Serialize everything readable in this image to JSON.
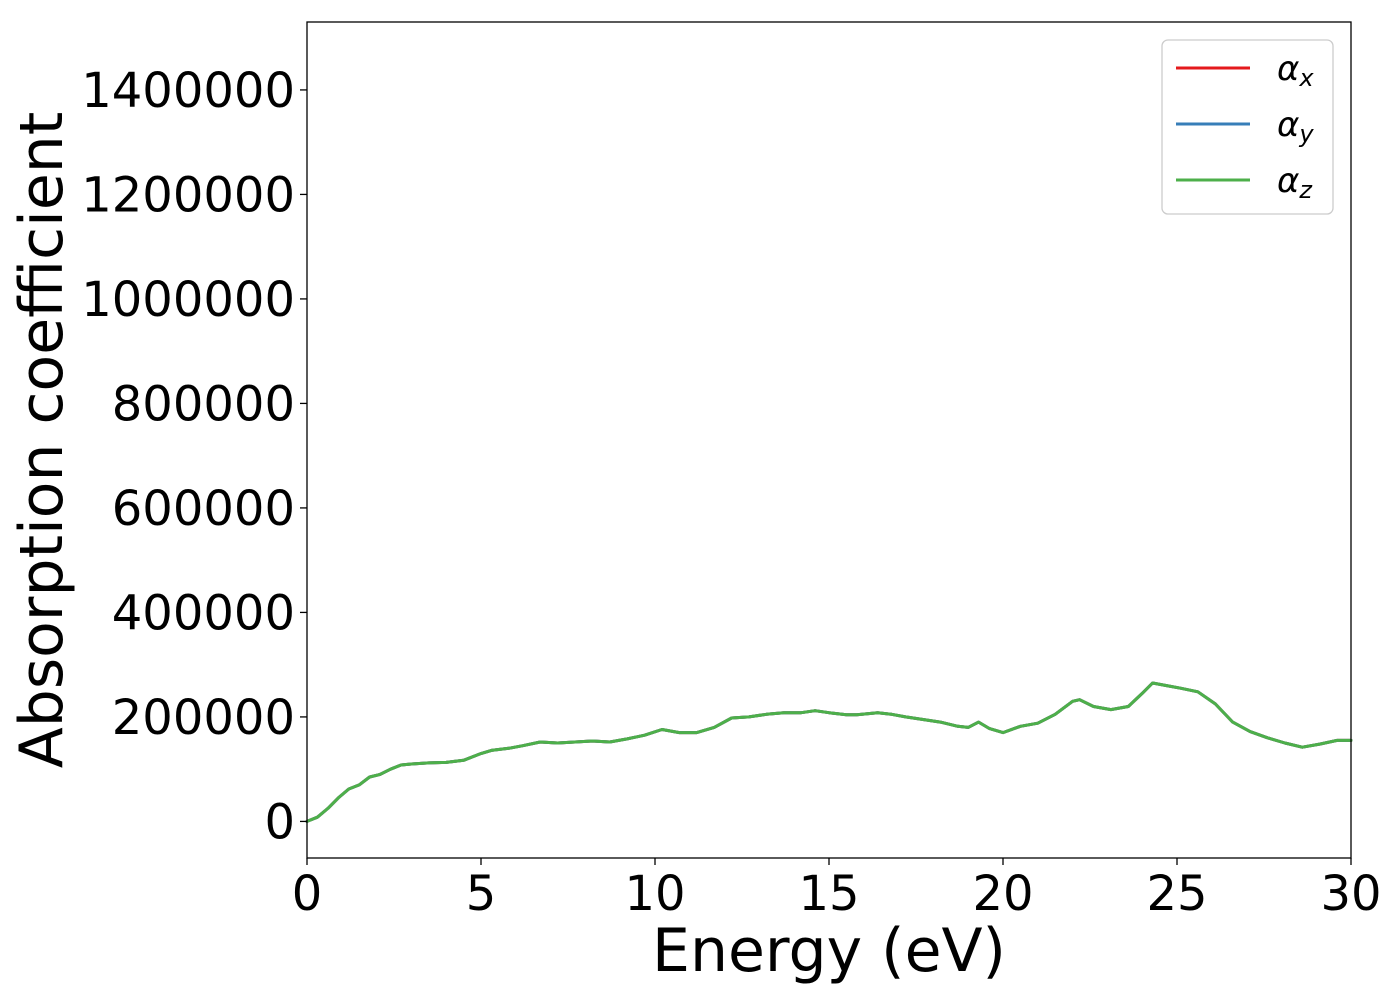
{
  "chart_data": {
    "type": "line",
    "title": "",
    "xlabel": "Energy (eV)",
    "ylabel": "Absorption coefficient",
    "xlim": [
      0,
      30
    ],
    "ylim": [
      -70000,
      1530000
    ],
    "xticks": [
      0,
      5,
      10,
      15,
      20,
      25,
      30
    ],
    "xtick_labels": [
      "0",
      "5",
      "10",
      "15",
      "20",
      "25",
      "30"
    ],
    "yticks": [
      0,
      200000,
      400000,
      600000,
      800000,
      1000000,
      1200000,
      1400000
    ],
    "ytick_labels": [
      "0",
      "200000",
      "400000",
      "600000",
      "800000",
      "1000000",
      "1200000",
      "1400000"
    ],
    "grid": false,
    "legend_position": "top-right",
    "x": [
      0,
      0.3,
      0.6,
      0.9,
      1.2,
      1.5,
      1.8,
      2.1,
      2.4,
      2.7,
      3.0,
      3.5,
      4.0,
      4.5,
      5.0,
      5.3,
      5.8,
      6.2,
      6.7,
      7.2,
      7.7,
      8.2,
      8.7,
      9.2,
      9.7,
      10.2,
      10.7,
      11.2,
      11.7,
      12.2,
      12.7,
      13.2,
      13.7,
      14.2,
      14.6,
      15.0,
      15.5,
      15.8,
      16.1,
      16.4,
      16.8,
      17.2,
      17.7,
      18.2,
      18.7,
      19.0,
      19.3,
      19.6,
      20.0,
      20.5,
      21.0,
      21.5,
      22.0,
      22.2,
      22.6,
      23.1,
      23.6,
      24.0,
      24.3,
      24.7,
      25.1,
      25.6,
      26.1,
      26.6,
      27.1,
      27.6,
      28.1,
      28.6,
      29.1,
      29.6,
      30.0
    ],
    "series": [
      {
        "name": "αx",
        "label_base": "α",
        "label_sub": "x",
        "color": "#e41a1c",
        "y": [
          0,
          8000,
          25000,
          45000,
          62000,
          70000,
          85000,
          90000,
          100000,
          108000,
          110000,
          112000,
          113000,
          117000,
          130000,
          136000,
          140000,
          145000,
          152000,
          150000,
          152000,
          154000,
          152000,
          158000,
          165000,
          176000,
          170000,
          170000,
          180000,
          198000,
          200000,
          205000,
          208000,
          208000,
          212000,
          208000,
          204000,
          204000,
          206000,
          208000,
          205000,
          200000,
          195000,
          190000,
          182000,
          180000,
          190000,
          178000,
          170000,
          182000,
          188000,
          205000,
          230000,
          233000,
          220000,
          214000,
          220000,
          245000,
          265000,
          260000,
          255000,
          248000,
          225000,
          190000,
          172000,
          160000,
          150000,
          142000,
          148000,
          155000,
          155000
        ]
      },
      {
        "name": "αy",
        "label_base": "α",
        "label_sub": "y",
        "color": "#377eb8",
        "y": [
          0,
          8000,
          25000,
          45000,
          62000,
          70000,
          85000,
          90000,
          100000,
          108000,
          110000,
          112000,
          113000,
          117000,
          130000,
          136000,
          140000,
          145000,
          152000,
          150000,
          152000,
          154000,
          152000,
          158000,
          165000,
          176000,
          170000,
          170000,
          180000,
          198000,
          200000,
          205000,
          208000,
          208000,
          212000,
          208000,
          204000,
          204000,
          206000,
          208000,
          205000,
          200000,
          195000,
          190000,
          182000,
          180000,
          190000,
          178000,
          170000,
          182000,
          188000,
          205000,
          230000,
          233000,
          220000,
          214000,
          220000,
          245000,
          265000,
          260000,
          255000,
          248000,
          225000,
          190000,
          172000,
          160000,
          150000,
          142000,
          148000,
          155000,
          155000
        ]
      },
      {
        "name": "αz",
        "label_base": "α",
        "label_sub": "z",
        "color": "#4daf4a",
        "y": [
          0,
          8000,
          25000,
          45000,
          62000,
          70000,
          85000,
          90000,
          100000,
          108000,
          110000,
          112000,
          113000,
          117000,
          130000,
          136000,
          140000,
          145000,
          152000,
          150000,
          152000,
          154000,
          152000,
          158000,
          165000,
          176000,
          170000,
          170000,
          180000,
          198000,
          200000,
          205000,
          208000,
          208000,
          212000,
          208000,
          204000,
          204000,
          206000,
          208000,
          205000,
          200000,
          195000,
          190000,
          182000,
          180000,
          190000,
          178000,
          170000,
          182000,
          188000,
          205000,
          230000,
          233000,
          220000,
          214000,
          220000,
          245000,
          265000,
          260000,
          255000,
          248000,
          225000,
          190000,
          172000,
          160000,
          150000,
          142000,
          148000,
          155000,
          155000
        ]
      }
    ]
  }
}
